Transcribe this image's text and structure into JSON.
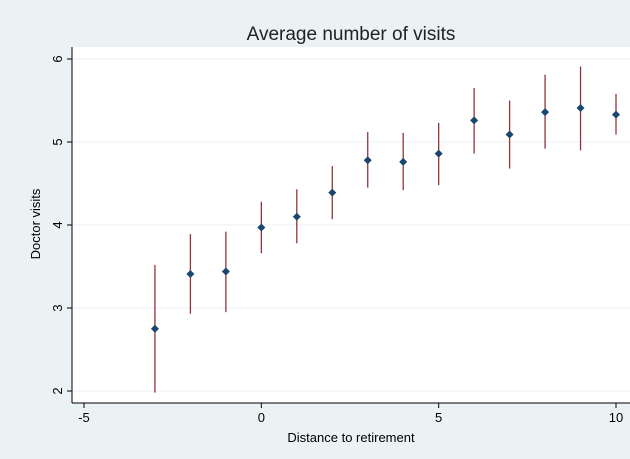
{
  "chart_data": {
    "type": "scatter",
    "title": "Average number of visits",
    "xlabel": "Distance to retirement",
    "ylabel": "Doctor visits",
    "xlim": [
      -5,
      10
    ],
    "ylim": [
      2,
      6
    ],
    "x_ticks": [
      -5,
      0,
      5,
      10
    ],
    "y_ticks": [
      2,
      3,
      4,
      5,
      6
    ],
    "grid": true,
    "colors": {
      "marker": "#1a476f",
      "error_bar": "#90353b",
      "background": "#eaf2f3",
      "plot_background": "#ffffff",
      "grid": "#eaf2f3"
    },
    "points": [
      {
        "x": -3,
        "y": 2.75,
        "lo": 1.98,
        "hi": 3.52
      },
      {
        "x": -2,
        "y": 3.41,
        "lo": 2.93,
        "hi": 3.89
      },
      {
        "x": -1,
        "y": 3.44,
        "lo": 2.95,
        "hi": 3.92
      },
      {
        "x": 0,
        "y": 3.97,
        "lo": 3.66,
        "hi": 4.28
      },
      {
        "x": 1,
        "y": 4.1,
        "lo": 3.78,
        "hi": 4.43
      },
      {
        "x": 2,
        "y": 4.39,
        "lo": 4.07,
        "hi": 4.71
      },
      {
        "x": 3,
        "y": 4.78,
        "lo": 4.45,
        "hi": 5.12
      },
      {
        "x": 4,
        "y": 4.76,
        "lo": 4.42,
        "hi": 5.11
      },
      {
        "x": 5,
        "y": 4.86,
        "lo": 4.48,
        "hi": 5.23
      },
      {
        "x": 6,
        "y": 5.26,
        "lo": 4.86,
        "hi": 5.65
      },
      {
        "x": 7,
        "y": 5.09,
        "lo": 4.68,
        "hi": 5.5
      },
      {
        "x": 8,
        "y": 5.36,
        "lo": 4.92,
        "hi": 5.81
      },
      {
        "x": 9,
        "y": 5.41,
        "lo": 4.9,
        "hi": 5.91
      },
      {
        "x": 10,
        "y": 5.33,
        "lo": 5.09,
        "hi": 5.58
      }
    ]
  }
}
